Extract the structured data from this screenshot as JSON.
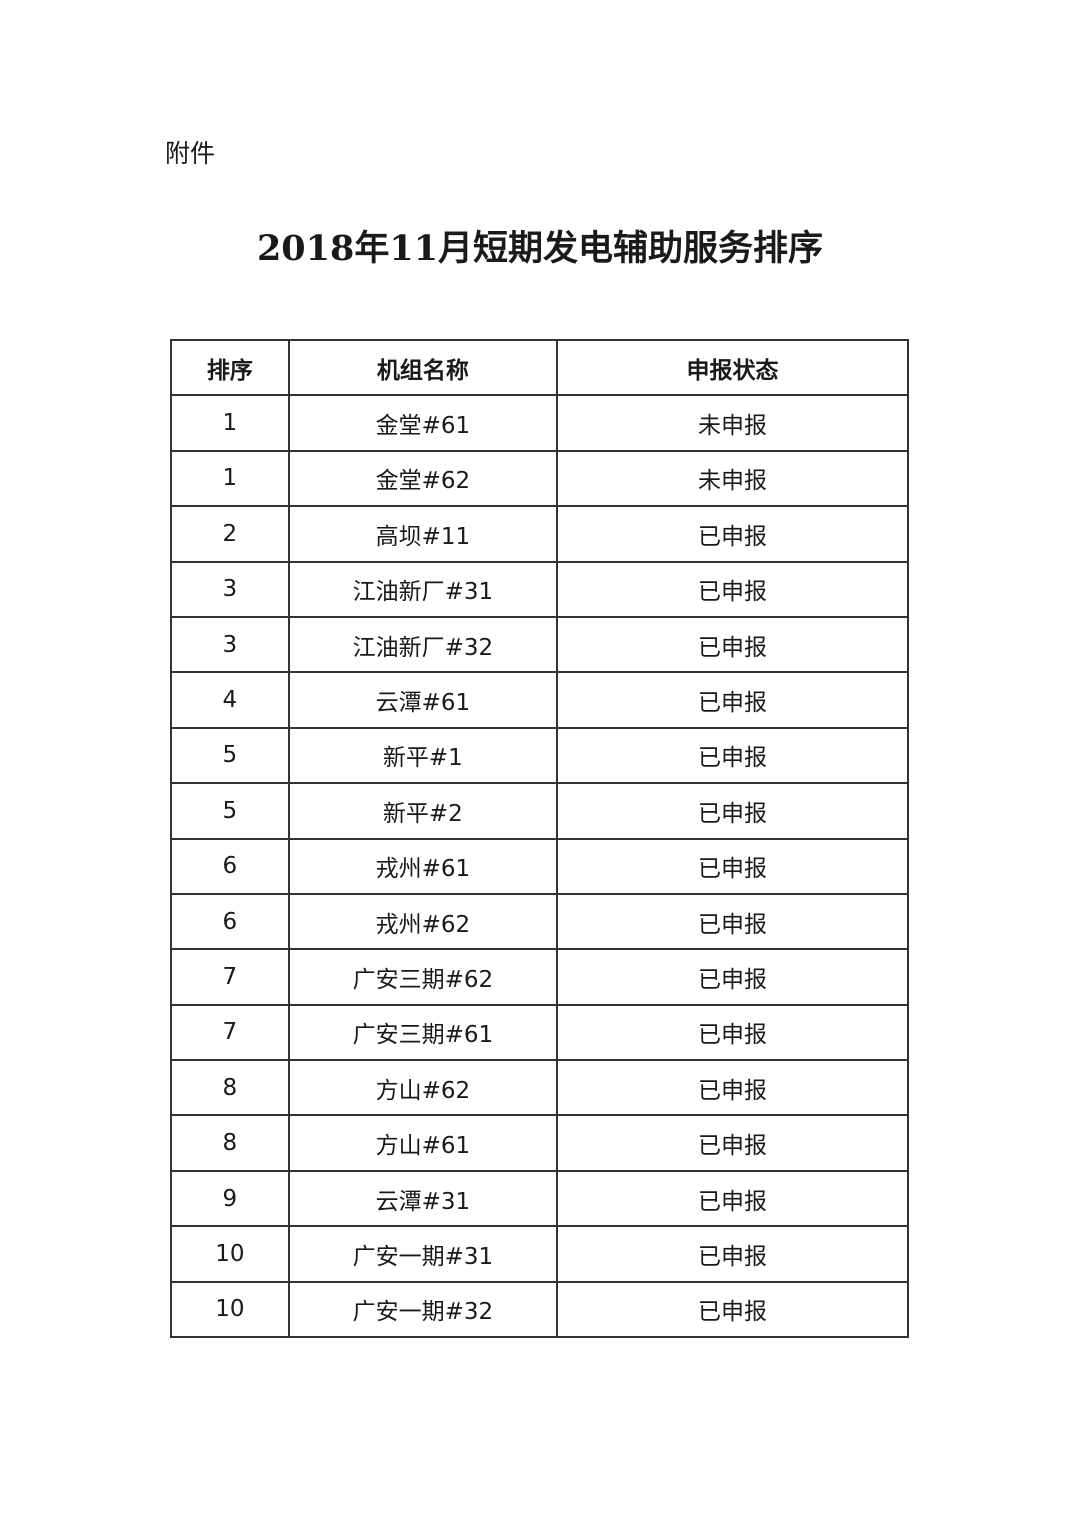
{
  "attachment_label": "附件",
  "title": "2018年11月短期发电辅助服务排序",
  "table": {
    "headers": [
      "排序",
      "机组名称",
      "申报状态"
    ],
    "rows": [
      [
        "1",
        "金堂#61",
        "未申报"
      ],
      [
        "1",
        "金堂#62",
        "未申报"
      ],
      [
        "2",
        "高坝#11",
        "已申报"
      ],
      [
        "3",
        "江油新厂#31",
        "已申报"
      ],
      [
        "3",
        "江油新厂#32",
        "已申报"
      ],
      [
        "4",
        "云潭#61",
        "已申报"
      ],
      [
        "5",
        "新平#1",
        "已申报"
      ],
      [
        "5",
        "新平#2",
        "已申报"
      ],
      [
        "6",
        "戎州#61",
        "已申报"
      ],
      [
        "6",
        "戎州#62",
        "已申报"
      ],
      [
        "7",
        "广安三期#62",
        "已申报"
      ],
      [
        "7",
        "广安三期#61",
        "已申报"
      ],
      [
        "8",
        "方山#62",
        "已申报"
      ],
      [
        "8",
        "方山#61",
        "已申报"
      ],
      [
        "9",
        "云潭#31",
        "已申报"
      ],
      [
        "10",
        "广安一期#31",
        "已申报"
      ],
      [
        "10",
        "广安一期#32",
        "已申报"
      ]
    ]
  }
}
